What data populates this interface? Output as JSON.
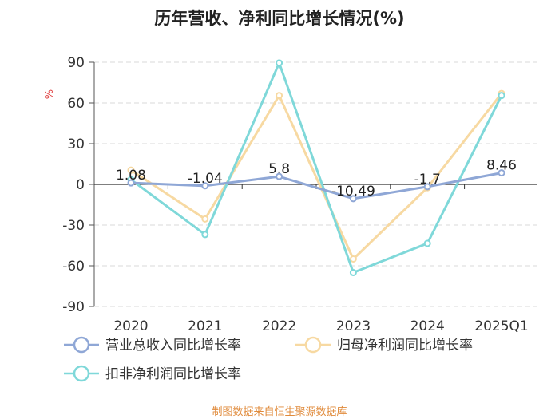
{
  "chart_data": {
    "type": "line",
    "title": "历年营收、净利同比增长情况(%)",
    "ylabel": "%",
    "categories": [
      "2020",
      "2021",
      "2022",
      "2023",
      "2024",
      "2025Q1"
    ],
    "ylim": [
      -90,
      90
    ],
    "yticks": [
      90,
      60,
      30,
      0,
      -30,
      -60,
      -90
    ],
    "series": [
      {
        "name": "营业总收入同比增长率",
        "values": [
          1.08,
          -1.04,
          5.8,
          -10.49,
          -1.7,
          8.46
        ],
        "color": "#8fa7d6",
        "labels": [
          "1.08",
          "-1.04",
          "5.8",
          "-10.49",
          "-1.7",
          "8.46"
        ]
      },
      {
        "name": "归母净利润同比增长率",
        "values": [
          10.5,
          -25.5,
          65.5,
          -55.0,
          -2.5,
          67.0
        ],
        "color": "#f7d9a2"
      },
      {
        "name": "扣非净利润同比增长率",
        "values": [
          3.5,
          -37.0,
          89.5,
          -65.0,
          -43.5,
          65.5
        ],
        "color": "#7fd8d9"
      }
    ]
  },
  "footer": {
    "source": "制图数据来自恒生聚源数据库"
  },
  "colors": {
    "title": "#222222",
    "ylabel": "#e04040",
    "source": "#e08a3a",
    "grid": "#d9d9d9"
  }
}
